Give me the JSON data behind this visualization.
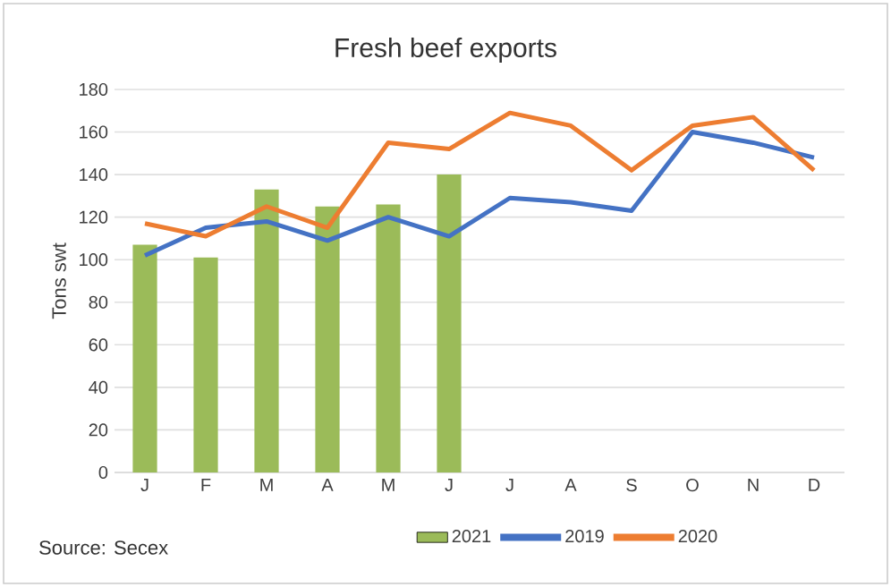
{
  "chart_data": {
    "type": "bar",
    "title": "Fresh beef exports",
    "ylabel": "Tons swt",
    "categories": [
      "J",
      "F",
      "M",
      "A",
      "M",
      "J",
      "J",
      "A",
      "S",
      "O",
      "N",
      "D"
    ],
    "series": [
      {
        "name": "2021",
        "color": "#9bbb59",
        "values": [
          107,
          101,
          133,
          125,
          126,
          140,
          null,
          null,
          null,
          null,
          null,
          null
        ]
      },
      {
        "name": "2019",
        "type": "line",
        "color": "#4472c4",
        "values": [
          102,
          115,
          118,
          109,
          120,
          111,
          129,
          127,
          123,
          160,
          155,
          148
        ]
      },
      {
        "name": "2020",
        "type": "line",
        "color": "#ed7d31",
        "values": [
          117,
          111,
          125,
          115,
          155,
          152,
          169,
          163,
          142,
          163,
          167,
          142
        ]
      }
    ],
    "ylim": [
      0,
      180
    ],
    "yticks": [
      0,
      20,
      40,
      60,
      80,
      100,
      120,
      140,
      160,
      180
    ],
    "grid": "y",
    "legend": "bottom",
    "marker": "none",
    "line_style": "solid",
    "annotations": [
      "Source: Secex"
    ]
  }
}
